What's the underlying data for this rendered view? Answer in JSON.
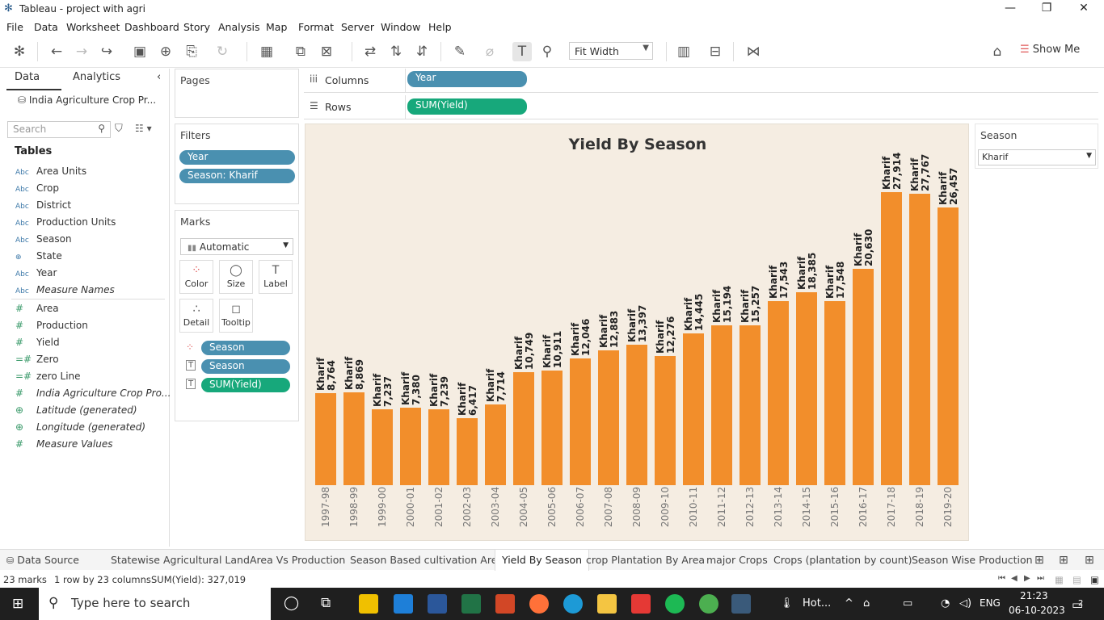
{
  "window": {
    "title": "Tableau - project with agri"
  },
  "menu": [
    "File",
    "Data",
    "Worksheet",
    "Dashboard",
    "Story",
    "Analysis",
    "Map",
    "Format",
    "Server",
    "Window",
    "Help"
  ],
  "toolbar": {
    "fit": "Fit Width",
    "show_me": "Show Me"
  },
  "left_pane": {
    "tabs": [
      "Data",
      "Analytics"
    ],
    "datasource": "India Agriculture Crop Pr...",
    "search_placeholder": "Search",
    "tables_heading": "Tables",
    "dimensions": [
      {
        "type": "Abc",
        "name": "Area Units"
      },
      {
        "type": "Abc",
        "name": "Crop"
      },
      {
        "type": "Abc",
        "name": "District"
      },
      {
        "type": "Abc",
        "name": "Production Units"
      },
      {
        "type": "Abc",
        "name": "Season"
      },
      {
        "type": "geo",
        "name": "State"
      },
      {
        "type": "Abc",
        "name": "Year"
      },
      {
        "type": "Abc",
        "name": "Measure Names"
      }
    ],
    "measures": [
      {
        "type": "#",
        "name": "Area"
      },
      {
        "type": "#",
        "name": "Production"
      },
      {
        "type": "#",
        "name": "Yield"
      },
      {
        "type": "=#",
        "name": "Zero"
      },
      {
        "type": "=#",
        "name": "zero Line"
      },
      {
        "type": "#",
        "name": "India Agriculture Crop Pro..."
      },
      {
        "type": "geo",
        "name": "Latitude (generated)"
      },
      {
        "type": "geo",
        "name": "Longitude (generated)"
      },
      {
        "type": "#",
        "name": "Measure Values"
      }
    ]
  },
  "pages": {
    "title": "Pages"
  },
  "filters": {
    "title": "Filters",
    "items": [
      "Year",
      "Season: Kharif"
    ]
  },
  "marks": {
    "title": "Marks",
    "type": "Automatic",
    "buttons": [
      "Color",
      "Size",
      "Label",
      "Detail",
      "Tooltip"
    ],
    "pills": [
      "Season",
      "Season",
      "SUM(Yield)"
    ]
  },
  "shelves": {
    "columns_label": "Columns",
    "columns_pill": "Year",
    "rows_label": "Rows",
    "rows_pill": "SUM(Yield)"
  },
  "season_card": {
    "title": "Season",
    "value": "Kharif"
  },
  "chart_data": {
    "type": "bar",
    "title": "Yield By Season",
    "xlabel": "",
    "ylabel": "",
    "categories": [
      "1997-98",
      "1998-99",
      "1999-00",
      "2000-01",
      "2001-02",
      "2002-03",
      "2003-04",
      "2004-05",
      "2005-06",
      "2006-07",
      "2007-08",
      "2008-09",
      "2009-10",
      "2010-11",
      "2011-12",
      "2012-13",
      "2013-14",
      "2014-15",
      "2015-16",
      "2016-17",
      "2017-18",
      "2018-19",
      "2019-20"
    ],
    "values": [
      8764,
      8869,
      7237,
      7380,
      7239,
      6417,
      7714,
      10749,
      10911,
      12046,
      12883,
      13397,
      12276,
      14445,
      15194,
      15257,
      17543,
      18385,
      17548,
      20630,
      27914,
      27767,
      26457
    ],
    "value_labels": [
      "8,764",
      "8,869",
      "7,237",
      "7,380",
      "7,239",
      "6,417",
      "7,714",
      "10,749",
      "10,911",
      "12,046",
      "12,883",
      "13,397",
      "12,276",
      "14,445",
      "15,194",
      "15,257",
      "17,543",
      "18,385",
      "17,548",
      "20,630",
      "27,914",
      "27,767",
      "26,457"
    ],
    "series_label": "Kharif",
    "color": "#f28e2b",
    "grid": false
  },
  "sheet_tabs": [
    "Data Source",
    "Statewise Agricultural Land",
    "Area Vs Production",
    "Season Based cultivation Area",
    "Yield By Season",
    "crop Plantation By Area",
    "major Crops",
    "Crops (plantation by count)",
    "Season Wise Production"
  ],
  "active_tab": "Yield By Season",
  "status": {
    "marks": "23 marks",
    "dims": "1 row by 23 columns",
    "sum": "SUM(Yield): 327,019"
  },
  "taskbar": {
    "search_placeholder": "Type here to search",
    "weather": "Hot...",
    "lang": "ENG",
    "time": "21:23",
    "date": "06-10-2023",
    "notifications": "2"
  }
}
